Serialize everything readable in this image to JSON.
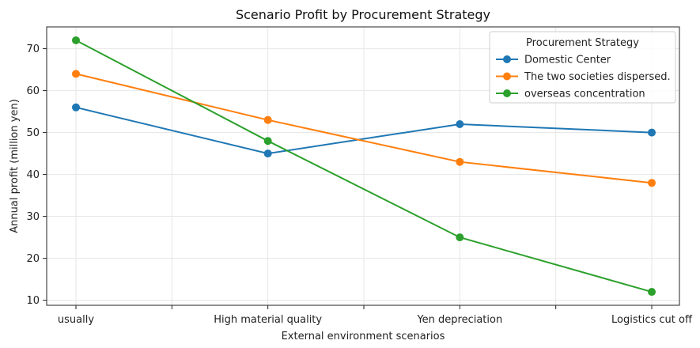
{
  "chart_data": {
    "type": "line",
    "title": "Scenario Profit by Procurement Strategy",
    "xlabel": "External environment scenarios",
    "ylabel": "Annual profit (million yen)",
    "categories": [
      "usually",
      "High material quality",
      "Yen depreciation",
      "Logistics cut off"
    ],
    "ylim": [
      8.8,
      75.2
    ],
    "yticks": [
      10,
      20,
      30,
      40,
      50,
      60,
      70
    ],
    "grid": true,
    "legend": {
      "title": "Procurement Strategy",
      "position": "top-right"
    },
    "series": [
      {
        "name": "Domestic Center",
        "color": "#1f77b4",
        "values": [
          56,
          45,
          52,
          50
        ]
      },
      {
        "name": "The two societies dispersed.",
        "color": "#ff7f0e",
        "values": [
          64,
          53,
          43,
          38
        ]
      },
      {
        "name": "overseas concentration",
        "color": "#2ca02c",
        "values": [
          72,
          48,
          25,
          12
        ]
      }
    ]
  }
}
